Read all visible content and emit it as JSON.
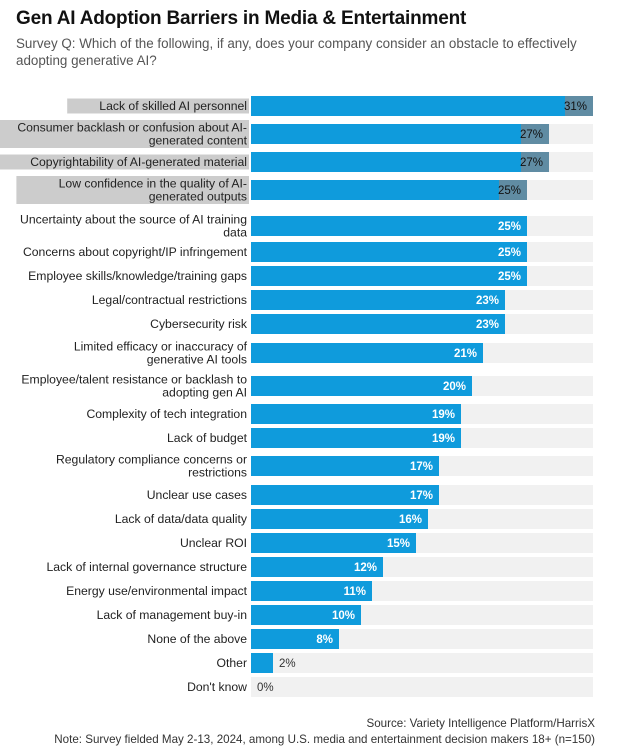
{
  "header": {
    "title": "Gen AI Adoption Barriers in Media & Entertainment",
    "subtitle_line1": "Survey Q: Which of the following, if any, does your company consider an obstacle to effectively",
    "subtitle_line2": "adopting generative AI?"
  },
  "footer": {
    "source": "Source: Variety Intelligence Platform/HarrisX",
    "note": "Note: Survey fielded May 2-13, 2024, among U.S. media and entertainment decision makers 18+ (n=150)"
  },
  "colors": {
    "bar": "#0f9bdc",
    "highlight_bar": "#6e8a99",
    "track": "#f1f1f1",
    "highlight_label_bg": "#cccccc",
    "value_text_inside": "#ffffff",
    "value_text_highlight": "#111111",
    "value_text_outside": "#333333"
  },
  "chart_data": {
    "type": "bar",
    "orientation": "horizontal",
    "xlim": [
      0,
      31
    ],
    "value_format": "percent",
    "categories": [
      [
        "Lack of skilled AI personnel"
      ],
      [
        "Consumer backlash or confusion about AI-",
        "generated content"
      ],
      [
        "Copyrightability of AI-generated material"
      ],
      [
        "Low confidence in the quality of AI-",
        "generated outputs"
      ],
      [
        "Uncertainty about the source of AI training",
        "data"
      ],
      [
        "Concerns about copyright/IP infringement"
      ],
      [
        "Employee skills/knowledge/training gaps"
      ],
      [
        "Legal/contractual restrictions"
      ],
      [
        "Cybersecurity risk"
      ],
      [
        "Limited efficacy or inaccuracy of",
        "generative AI tools"
      ],
      [
        "Employee/talent resistance or backlash to",
        "adopting gen AI"
      ],
      [
        "Complexity of tech integration"
      ],
      [
        "Lack of budget"
      ],
      [
        "Regulatory compliance concerns or",
        "restrictions"
      ],
      [
        "Unclear use cases"
      ],
      [
        "Lack of data/data quality"
      ],
      [
        "Unclear ROI"
      ],
      [
        "Lack of internal governance structure"
      ],
      [
        "Energy use/environmental impact"
      ],
      [
        "Lack of management buy-in"
      ],
      [
        "None of the above"
      ],
      [
        "Other"
      ],
      [
        "Don't know"
      ]
    ],
    "values": [
      31,
      27,
      27,
      25,
      25,
      25,
      25,
      23,
      23,
      21,
      20,
      19,
      19,
      17,
      17,
      16,
      15,
      12,
      11,
      10,
      8,
      2,
      0
    ],
    "value_labels": [
      "31%",
      "27%",
      "27%",
      "25%",
      "25%",
      "25%",
      "25%",
      "23%",
      "23%",
      "21%",
      "20%",
      "19%",
      "19%",
      "17%",
      "17%",
      "16%",
      "15%",
      "12%",
      "11%",
      "10%",
      "8%",
      "2%",
      "0%"
    ],
    "highlighted_labels": [
      0,
      1,
      2,
      3
    ]
  }
}
